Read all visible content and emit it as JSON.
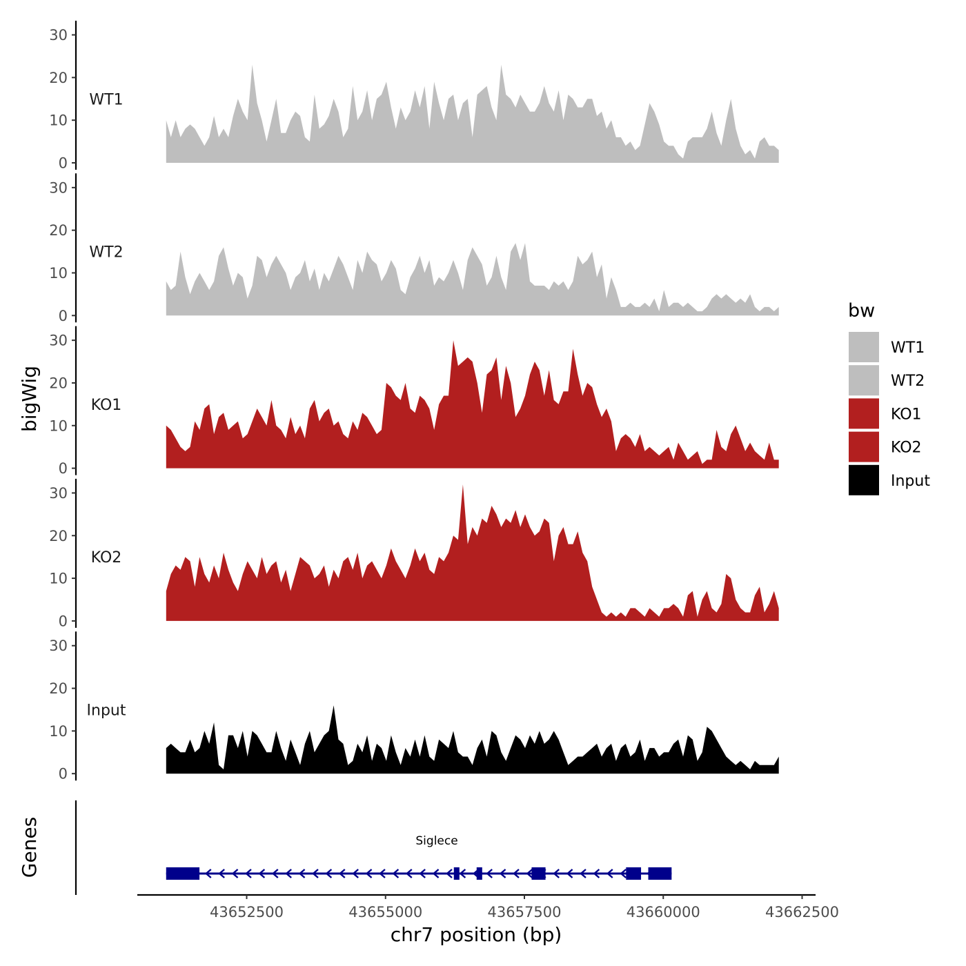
{
  "chart_data": {
    "type": "area",
    "xlabel": "chr7 position (bp)",
    "ylabel_tracks": "bigWig",
    "ylabel_genes": "Genes",
    "xlim": [
      43650000,
      43662500
    ],
    "x_ticks": [
      43652500,
      43655000,
      43657500,
      43660000,
      43662500
    ],
    "y_ticks": [
      0,
      10,
      20,
      30
    ],
    "ylim": [
      0,
      33
    ],
    "x_start": 43651050,
    "x_end": 43662080,
    "legend": {
      "title": "bw",
      "position": "right",
      "entries": [
        {
          "label": "WT1",
          "color": "#bebebe"
        },
        {
          "label": "WT2",
          "color": "#bebebe"
        },
        {
          "label": "KO1",
          "color": "#b21f1f"
        },
        {
          "label": "KO2",
          "color": "#b21f1f"
        },
        {
          "label": "Input",
          "color": "#000000"
        }
      ]
    },
    "series": [
      {
        "name": "WT1",
        "color": "#bebebe",
        "values": [
          10,
          6,
          10,
          6,
          8,
          9,
          8,
          6,
          4,
          6,
          11,
          6,
          8,
          6,
          11,
          15,
          12,
          10,
          23,
          14,
          10,
          5,
          10,
          15,
          7,
          7,
          10,
          12,
          11,
          6,
          5,
          16,
          8,
          9,
          11,
          15,
          12,
          6,
          8,
          18,
          10,
          12,
          17,
          10,
          15,
          16,
          19,
          13,
          8,
          13,
          10,
          12,
          17,
          13,
          18,
          8,
          19,
          14,
          10,
          15,
          16,
          10,
          14,
          15,
          6,
          16,
          17,
          18,
          13,
          10,
          23,
          16,
          15,
          13,
          16,
          14,
          12,
          12,
          14,
          18,
          14,
          12,
          17,
          10,
          16,
          15,
          13,
          13,
          15,
          15,
          11,
          12,
          8,
          10,
          6,
          6,
          4,
          5,
          3,
          4,
          9,
          14,
          12,
          9,
          5,
          4,
          4,
          2,
          1,
          5,
          6,
          6,
          6,
          8,
          12,
          7,
          4,
          10,
          15,
          8,
          4,
          2,
          3,
          1,
          5,
          6,
          4,
          4,
          3
        ]
      },
      {
        "name": "WT2",
        "color": "#bebebe",
        "values": [
          8,
          6,
          7,
          15,
          9,
          5,
          8,
          10,
          8,
          6,
          8,
          14,
          16,
          11,
          7,
          10,
          9,
          4,
          7,
          14,
          13,
          9,
          12,
          14,
          12,
          10,
          6,
          9,
          10,
          13,
          8,
          11,
          6,
          10,
          8,
          11,
          14,
          12,
          9,
          6,
          13,
          10,
          15,
          13,
          12,
          8,
          10,
          13,
          11,
          6,
          5,
          9,
          11,
          14,
          10,
          13,
          7,
          9,
          8,
          10,
          13,
          10,
          6,
          13,
          16,
          14,
          12,
          7,
          9,
          14,
          9,
          6,
          15,
          17,
          13,
          17,
          8,
          7,
          7,
          7,
          6,
          8,
          7,
          8,
          6,
          8,
          14,
          12,
          13,
          15,
          9,
          12,
          4,
          9,
          6,
          2,
          2,
          3,
          2,
          2,
          3,
          2,
          4,
          1,
          6,
          2,
          3,
          3,
          2,
          3,
          2,
          1,
          1,
          2,
          4,
          5,
          4,
          5,
          4,
          3,
          4,
          3,
          5,
          2,
          1,
          2,
          2,
          1,
          2
        ]
      },
      {
        "name": "KO1",
        "color": "#b21f1f",
        "values": [
          10,
          9,
          7,
          5,
          4,
          5,
          11,
          9,
          14,
          15,
          8,
          12,
          13,
          9,
          10,
          11,
          7,
          8,
          11,
          14,
          12,
          10,
          16,
          10,
          9,
          7,
          12,
          8,
          10,
          7,
          14,
          16,
          11,
          13,
          14,
          10,
          11,
          8,
          7,
          11,
          9,
          13,
          12,
          10,
          8,
          9,
          20,
          19,
          17,
          16,
          20,
          14,
          13,
          17,
          16,
          14,
          9,
          15,
          17,
          17,
          30,
          24,
          25,
          26,
          25,
          20,
          13,
          22,
          23,
          26,
          16,
          24,
          20,
          12,
          14,
          17,
          22,
          25,
          23,
          17,
          23,
          16,
          15,
          18,
          18,
          28,
          22,
          17,
          20,
          19,
          15,
          12,
          14,
          11,
          4,
          7,
          8,
          7,
          5,
          8,
          4,
          5,
          4,
          3,
          4,
          5,
          2,
          6,
          4,
          2,
          3,
          4,
          1,
          2,
          2,
          9,
          5,
          4,
          8,
          10,
          7,
          4,
          6,
          4,
          3,
          2,
          6,
          2,
          2
        ]
      },
      {
        "name": "KO2",
        "color": "#b21f1f",
        "values": [
          7,
          11,
          13,
          12,
          15,
          14,
          8,
          15,
          11,
          9,
          13,
          10,
          16,
          12,
          9,
          7,
          11,
          14,
          12,
          10,
          15,
          11,
          13,
          14,
          9,
          12,
          7,
          11,
          15,
          14,
          13,
          10,
          11,
          13,
          8,
          12,
          10,
          14,
          15,
          12,
          16,
          10,
          13,
          14,
          12,
          10,
          13,
          17,
          14,
          12,
          10,
          13,
          17,
          14,
          16,
          12,
          11,
          15,
          14,
          16,
          20,
          19,
          32,
          18,
          22,
          20,
          24,
          23,
          27,
          25,
          22,
          24,
          23,
          26,
          22,
          25,
          22,
          20,
          21,
          24,
          23,
          14,
          20,
          22,
          18,
          18,
          21,
          16,
          14,
          8,
          5,
          2,
          1,
          2,
          1,
          2,
          1,
          3,
          3,
          2,
          1,
          3,
          2,
          1,
          3,
          3,
          4,
          3,
          1,
          6,
          7,
          1,
          5,
          7,
          3,
          2,
          4,
          11,
          10,
          5,
          3,
          2,
          2,
          6,
          8,
          2,
          4,
          7,
          3
        ]
      },
      {
        "name": "Input",
        "color": "#000000",
        "values": [
          6,
          7,
          6,
          5,
          5,
          8,
          5,
          6,
          10,
          7,
          12,
          2,
          1,
          9,
          9,
          6,
          10,
          4,
          10,
          9,
          7,
          5,
          5,
          10,
          6,
          3,
          8,
          5,
          2,
          7,
          10,
          5,
          7,
          9,
          10,
          16,
          8,
          7,
          2,
          3,
          7,
          5,
          9,
          3,
          7,
          6,
          3,
          9,
          5,
          2,
          6,
          4,
          8,
          4,
          9,
          4,
          3,
          8,
          7,
          6,
          10,
          5,
          4,
          4,
          2,
          6,
          8,
          4,
          10,
          9,
          5,
          3,
          6,
          9,
          8,
          6,
          9,
          7,
          10,
          7,
          8,
          10,
          8,
          5,
          2,
          3,
          4,
          4,
          5,
          6,
          7,
          4,
          6,
          7,
          3,
          6,
          7,
          4,
          5,
          8,
          3,
          6,
          6,
          4,
          5,
          5,
          7,
          8,
          4,
          9,
          8,
          3,
          5,
          11,
          10,
          8,
          6,
          4,
          3,
          2,
          3,
          2,
          1,
          3,
          2,
          2,
          2,
          2,
          4
        ]
      }
    ],
    "gene": {
      "name": "Siglece",
      "color": "#00008b",
      "strand": "-",
      "start": 43651050,
      "end": 43660150,
      "exons": [
        [
          43651050,
          43651650
        ],
        [
          43656230,
          43656330
        ],
        [
          43656640,
          43656740
        ],
        [
          43657630,
          43657880
        ],
        [
          43659330,
          43659600
        ],
        [
          43659730,
          43660150
        ]
      ]
    }
  }
}
